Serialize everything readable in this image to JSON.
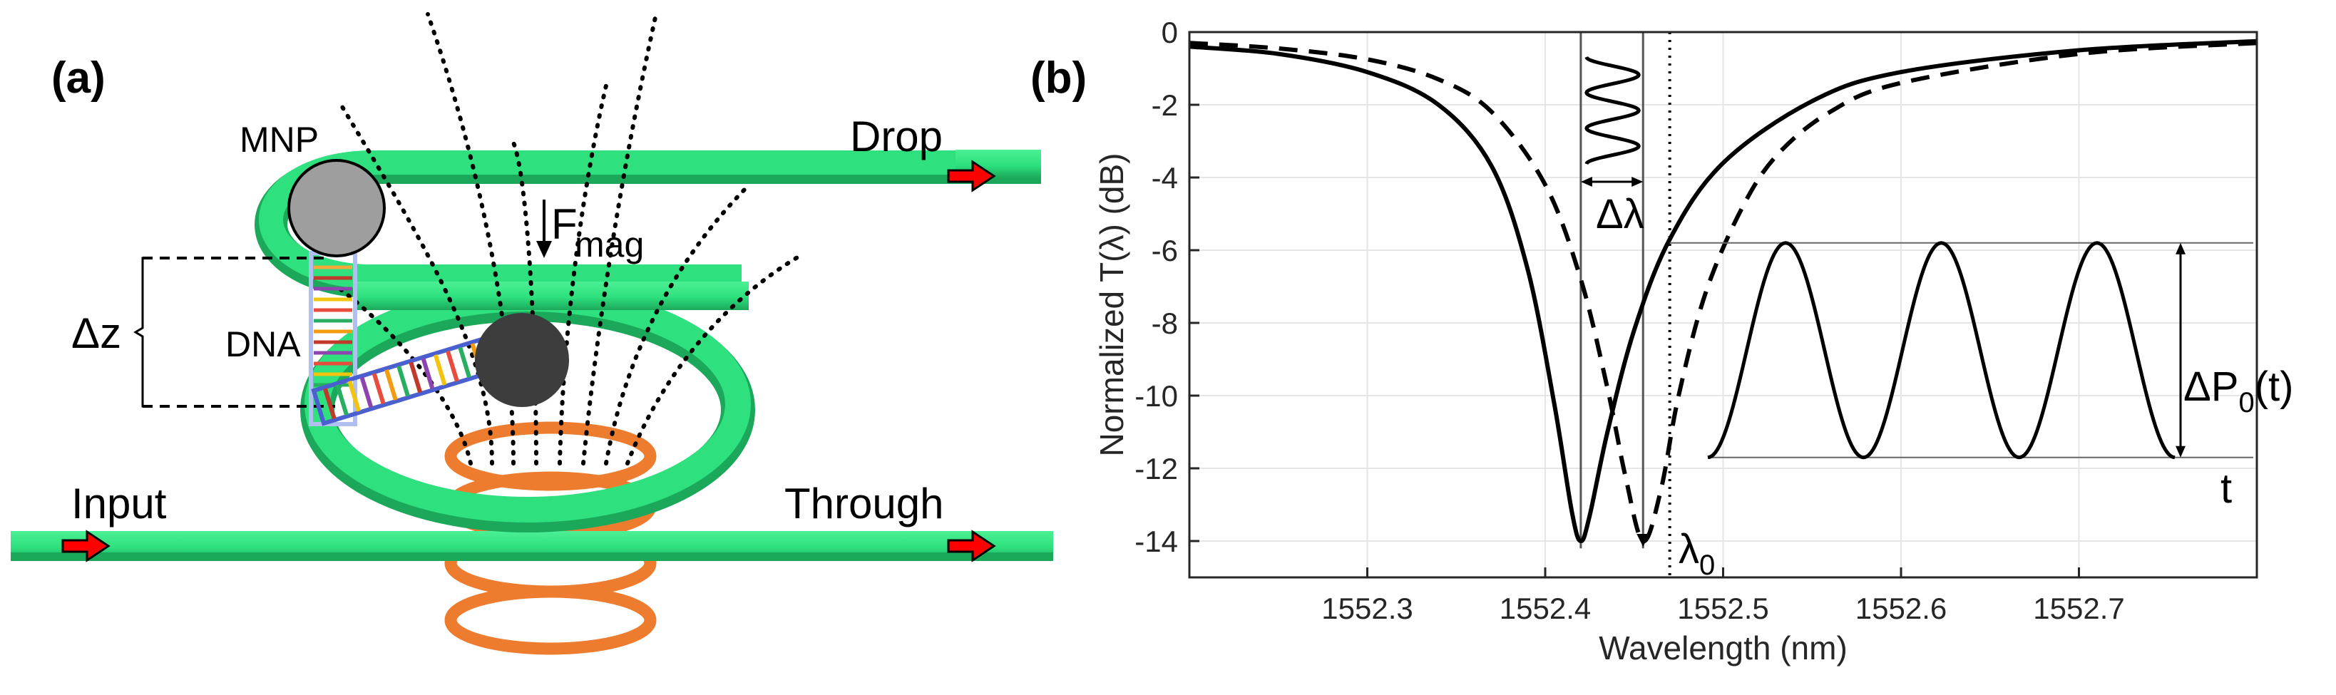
{
  "panel_a": {
    "label": "(a)",
    "mnp_label": "MNP",
    "drop_label": "Drop",
    "force_label": "F",
    "force_sub": "mag",
    "dz_label": "Δz",
    "dna_label": "DNA",
    "input_label": "Input",
    "through_label": "Through",
    "colors": {
      "waveguide": "#2EE07E",
      "waveguide_dark": "#1FAE5E",
      "arrow": "#FF0000",
      "coil": "#EE7C2E",
      "mnp_light": "#9E9E9E",
      "mnp_dark": "#3D3D3D",
      "dna_backbone": "#4A5FD0"
    },
    "icons": [
      "right-arrow-icon",
      "down-arrow-icon"
    ]
  },
  "panel_b": {
    "label": "(b)",
    "annotations": {
      "delta_lambda": "Δλ",
      "delta_p_main": "ΔP",
      "delta_p_sub": "0",
      "delta_p_tail": "(t)",
      "t_label": "t",
      "lambda_main": "λ",
      "lambda_sub": "0"
    }
  },
  "chart_data": {
    "type": "line",
    "title": "",
    "xlabel": "Wavelength (nm)",
    "ylabel": "Normalized T(λ) (dB)",
    "xlim": [
      1552.2,
      1552.8
    ],
    "ylim": [
      -15,
      0
    ],
    "xticks": [
      1552.3,
      1552.4,
      1552.5,
      1552.6,
      1552.7
    ],
    "yticks": [
      0,
      -2,
      -4,
      -6,
      -8,
      -10,
      -12,
      -14
    ],
    "grid": true,
    "series": [
      {
        "style": "solid",
        "x": [
          1552.2,
          1552.25,
          1552.3,
          1552.34,
          1552.37,
          1552.39,
          1552.405,
          1552.415,
          1552.42,
          1552.425,
          1552.435,
          1552.45,
          1552.47,
          1552.5,
          1552.55,
          1552.6,
          1552.7,
          1552.8
        ],
        "y": [
          -0.4,
          -0.6,
          -1.1,
          -2.0,
          -3.7,
          -6.5,
          -10.2,
          -13.2,
          -14.0,
          -13.3,
          -11.0,
          -8.2,
          -5.7,
          -3.6,
          -1.9,
          -1.1,
          -0.5,
          -0.25
        ]
      },
      {
        "style": "dashed",
        "x": [
          1552.2,
          1552.25,
          1552.3,
          1552.34,
          1552.37,
          1552.4,
          1552.42,
          1552.435,
          1552.445,
          1552.455,
          1552.465,
          1552.475,
          1552.49,
          1552.51,
          1552.53,
          1552.56,
          1552.6,
          1552.7,
          1552.8
        ],
        "y": [
          -0.3,
          -0.45,
          -0.75,
          -1.3,
          -2.2,
          -4.2,
          -6.8,
          -9.8,
          -12.2,
          -14.0,
          -12.6,
          -10.0,
          -7.2,
          -4.9,
          -3.4,
          -2.2,
          -1.4,
          -0.6,
          -0.3
        ]
      }
    ],
    "lambda0": 1552.47,
    "bracket_lines": [
      1552.42,
      1552.455
    ],
    "inset_curves": {
      "small_vertical_periods": 3,
      "large_horizontal_periods": 3
    }
  }
}
